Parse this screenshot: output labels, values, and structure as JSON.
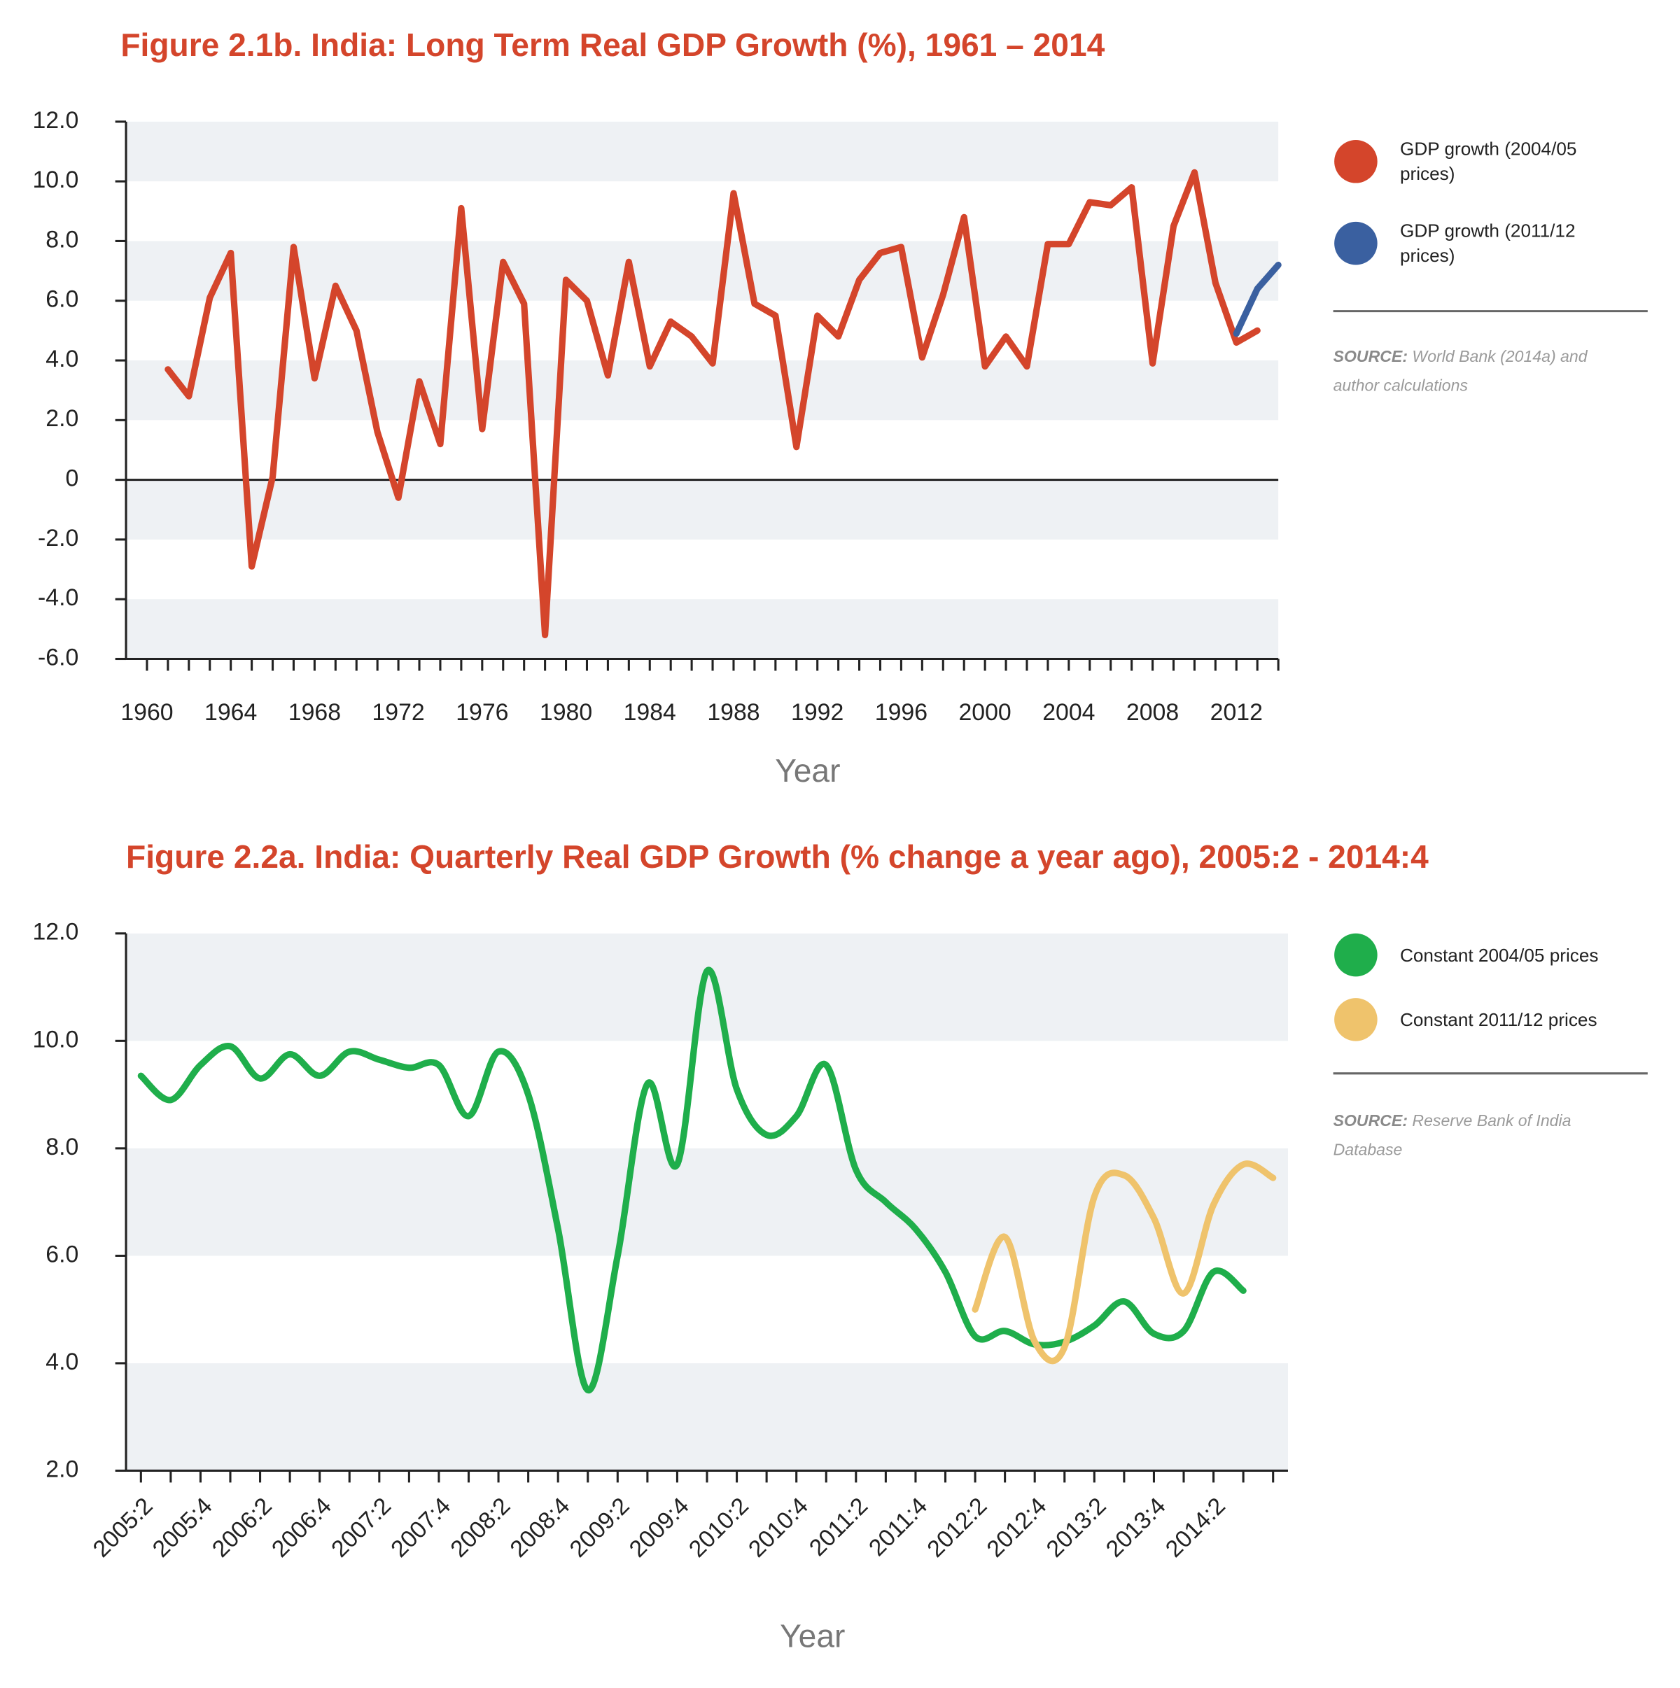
{
  "chart_data": [
    {
      "type": "line",
      "title": "Figure 2.1b. India: Long Term Real GDP Growth (%), 1961 – 2014",
      "x_label": "Year",
      "x": [
        1961,
        1962,
        1963,
        1964,
        1965,
        1966,
        1967,
        1968,
        1969,
        1970,
        1971,
        1972,
        1973,
        1974,
        1975,
        1976,
        1977,
        1978,
        1979,
        1980,
        1981,
        1982,
        1983,
        1984,
        1985,
        1986,
        1987,
        1988,
        1989,
        1990,
        1991,
        1992,
        1993,
        1994,
        1995,
        1996,
        1997,
        1998,
        1999,
        2000,
        2001,
        2002,
        2003,
        2004,
        2005,
        2006,
        2007,
        2008,
        2009,
        2010,
        2011,
        2012,
        2013,
        2014
      ],
      "series": [
        {
          "name": "GDP growth (2004/05 prices)",
          "color": "#d4452b",
          "values": [
            3.7,
            2.8,
            6.1,
            7.6,
            -2.9,
            0.1,
            7.8,
            3.4,
            6.5,
            5.0,
            1.6,
            -0.6,
            3.3,
            1.2,
            9.1,
            1.7,
            7.3,
            5.9,
            -5.2,
            6.7,
            6.0,
            3.5,
            7.3,
            3.8,
            5.3,
            4.8,
            3.9,
            9.6,
            5.9,
            5.5,
            1.1,
            5.5,
            4.8,
            6.7,
            7.6,
            7.8,
            4.1,
            6.2,
            8.8,
            3.8,
            4.8,
            3.8,
            7.9,
            7.9,
            9.3,
            9.2,
            9.8,
            3.9,
            8.5,
            10.3,
            6.6,
            4.6,
            5.0,
            null
          ]
        },
        {
          "name": "GDP growth (2011/12 prices)",
          "color": "#3a60a0",
          "values": [
            null,
            null,
            null,
            null,
            null,
            null,
            null,
            null,
            null,
            null,
            null,
            null,
            null,
            null,
            null,
            null,
            null,
            null,
            null,
            null,
            null,
            null,
            null,
            null,
            null,
            null,
            null,
            null,
            null,
            null,
            null,
            null,
            null,
            null,
            null,
            null,
            null,
            null,
            null,
            null,
            null,
            null,
            null,
            null,
            null,
            null,
            null,
            null,
            null,
            null,
            null,
            4.9,
            6.4,
            7.2
          ]
        }
      ],
      "xlim": [
        1959,
        2014
      ],
      "xticks": [
        1960,
        1964,
        1968,
        1972,
        1976,
        1980,
        1984,
        1988,
        1992,
        1996,
        2000,
        2004,
        2008,
        2012
      ],
      "xminorticks": [
        1961,
        1962,
        1963,
        1965,
        1966,
        1967,
        1969,
        1970,
        1971,
        1973,
        1974,
        1975,
        1977,
        1978,
        1979,
        1981,
        1982,
        1983,
        1985,
        1986,
        1987,
        1989,
        1990,
        1991,
        1993,
        1994,
        1995,
        1997,
        1998,
        1999,
        2001,
        2002,
        2003,
        2005,
        2006,
        2007,
        2009,
        2010,
        2011,
        2013,
        2014
      ],
      "ylim": [
        -6,
        12
      ],
      "yticks": [
        {
          "value": 12,
          "label": "12.0"
        },
        {
          "value": 10,
          "label": "10.0"
        },
        {
          "value": 8,
          "label": "8.0"
        },
        {
          "value": 6,
          "label": "6.0"
        },
        {
          "value": 4,
          "label": "4.0"
        },
        {
          "value": 2,
          "label": "2.0"
        },
        0,
        {
          "value": -2,
          "label": "-2.0"
        },
        {
          "value": -4,
          "label": "-4.0"
        },
        {
          "value": -6,
          "label": "-6.0"
        }
      ],
      "grid": "bands",
      "smooth": false,
      "source_label": "SOURCE:",
      "source": "World Bank (2014a) and author calculations"
    },
    {
      "type": "line",
      "title": "Figure 2.2a. India: Quarterly Real GDP Growth (% change a year ago), 2005:2 - 2014:4",
      "x_label": "Year",
      "categories": [
        "2005:2",
        null,
        "2005:4",
        null,
        "2006:2",
        null,
        "2006:4",
        null,
        "2007:2",
        null,
        "2007:4",
        null,
        "2008:2",
        null,
        "2008:4",
        null,
        "2009:2",
        null,
        "2009:4",
        null,
        "2010:2",
        null,
        "2010:4",
        null,
        "2011:2",
        null,
        "2011:4",
        null,
        "2012:2",
        null,
        "2012:4",
        null,
        "2013:2",
        null,
        "2013:4",
        null,
        "2014:2",
        null,
        null
      ],
      "series": [
        {
          "name": "Constant 2004/05 prices",
          "color": "#1fae4b",
          "values": [
            9.35,
            8.9,
            9.55,
            9.9,
            9.3,
            9.75,
            9.35,
            9.8,
            9.65,
            9.5,
            9.55,
            8.6,
            9.8,
            9.0,
            6.5,
            3.5,
            6.0,
            9.2,
            7.7,
            11.3,
            9.1,
            8.25,
            8.6,
            9.55,
            7.6,
            7.0,
            6.5,
            5.7,
            4.5,
            4.6,
            4.35,
            4.4,
            4.7,
            5.15,
            4.55,
            4.6,
            5.7,
            5.35,
            null
          ]
        },
        {
          "name": "Constant 2011/12 prices",
          "color": "#efc36c",
          "values": [
            null,
            null,
            null,
            null,
            null,
            null,
            null,
            null,
            null,
            null,
            null,
            null,
            null,
            null,
            null,
            null,
            null,
            null,
            null,
            null,
            null,
            null,
            null,
            null,
            null,
            null,
            null,
            null,
            5.0,
            6.35,
            4.4,
            4.3,
            7.1,
            7.5,
            6.7,
            5.3,
            6.95,
            7.7,
            7.45
          ]
        }
      ],
      "ylim": [
        2,
        12
      ],
      "yticks": [
        {
          "value": 12,
          "label": "12.0"
        },
        {
          "value": 10,
          "label": "10.0"
        },
        {
          "value": 8,
          "label": "8.0"
        },
        {
          "value": 6,
          "label": "6.0"
        },
        {
          "value": 4,
          "label": "4.0"
        },
        {
          "value": 2,
          "label": "2.0"
        }
      ],
      "grid": "bands",
      "smooth": true,
      "source_label": "SOURCE:",
      "source": "Reserve Bank of India Database"
    }
  ]
}
